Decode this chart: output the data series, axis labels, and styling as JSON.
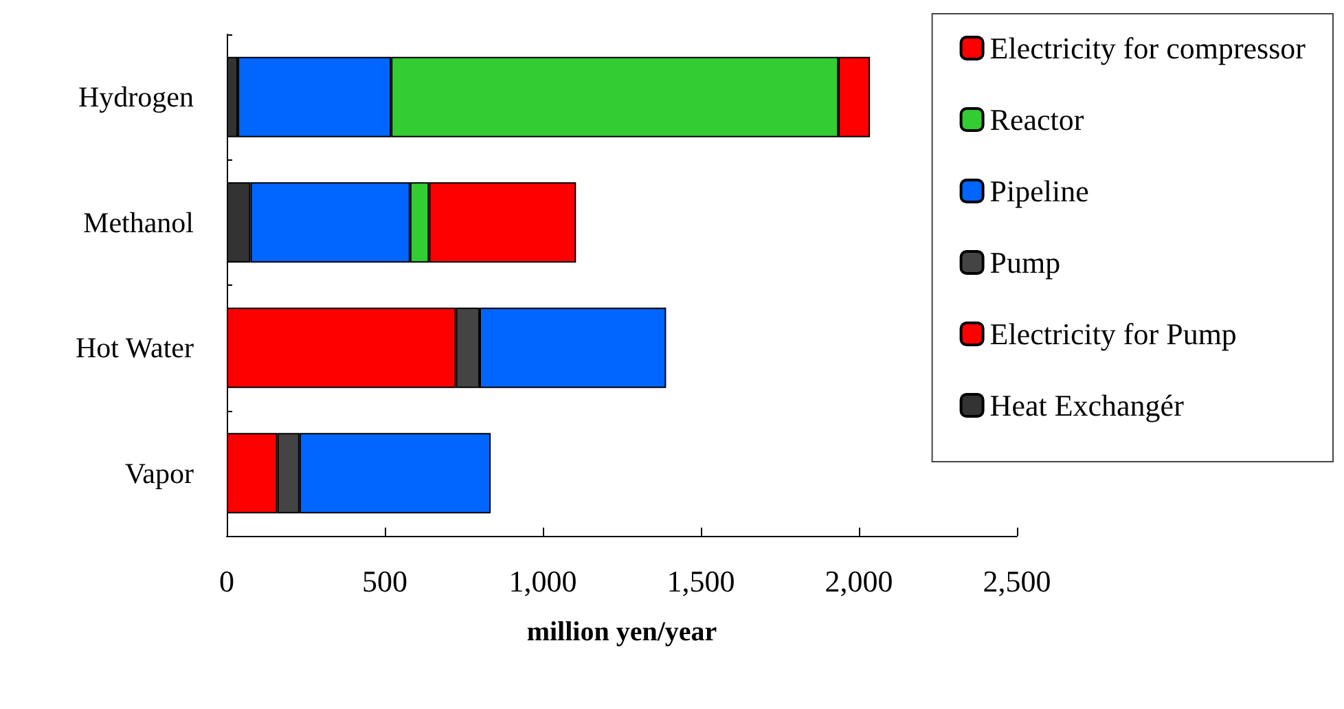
{
  "chart_data": {
    "type": "bar",
    "orientation": "horizontal",
    "stacked": true,
    "xlabel": "million yen/year",
    "categories": [
      "Hydrogen",
      "Methanol",
      "Hot Water",
      "Vapor"
    ],
    "series": [
      {
        "name": "Heat Exchangér",
        "color": "#333333",
        "values": [
          35,
          75,
          null,
          null
        ]
      },
      {
        "name": "Electricity for Pump",
        "color": "#ff0000",
        "values": [
          null,
          null,
          725,
          160
        ]
      },
      {
        "name": "Pump",
        "color": "#444444",
        "values": [
          null,
          null,
          75,
          70
        ]
      },
      {
        "name": "Pipeline",
        "color": "#0066ff",
        "values": [
          485,
          505,
          590,
          605
        ]
      },
      {
        "name": "Reactor",
        "color": "#33cc33",
        "values": [
          1415,
          60,
          null,
          null
        ]
      },
      {
        "name": "Electricity for compressor",
        "color": "#ff0000",
        "values": [
          100,
          465,
          null,
          null
        ]
      }
    ],
    "xlim": [
      0,
      2500
    ],
    "xticks": [
      0,
      {
        "value": 500,
        "label": "500"
      },
      {
        "value": 1000,
        "label": "1,000"
      },
      {
        "value": 1500,
        "label": "1,500"
      },
      {
        "value": 2000,
        "label": "2,000"
      },
      {
        "value": 2500,
        "label": "2,500"
      }
    ],
    "legend": "right",
    "grid": false
  }
}
